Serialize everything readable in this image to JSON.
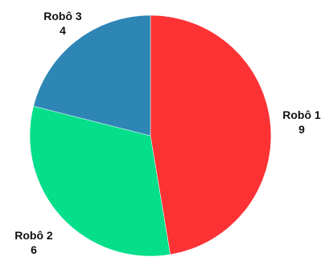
{
  "chart_data": {
    "type": "pie",
    "slices": [
      {
        "name": "Robô 1",
        "value": 9,
        "color": "#fc3234"
      },
      {
        "name": "Robô 2",
        "value": 6,
        "color": "#05de8b"
      },
      {
        "name": "Robô 3",
        "value": 4,
        "color": "#2e86b5"
      }
    ],
    "start": "top",
    "direction": "clockwise",
    "legend": "none"
  }
}
